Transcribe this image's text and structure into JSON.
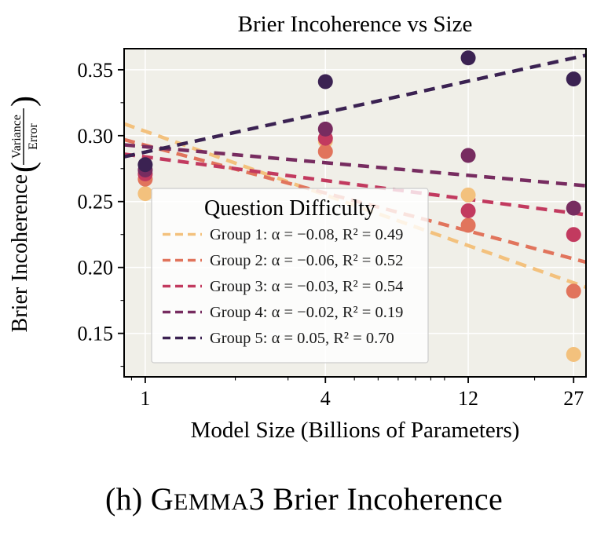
{
  "figure": {
    "caption": {
      "part1": "(h) G",
      "part2": "EMMA",
      "part3": "3 Brier Incoherence"
    }
  },
  "chart_data": {
    "type": "scatter",
    "title": "Brier Incoherence vs Size",
    "xlabel": "Model Size (Billions of Parameters)",
    "ylabel": "Brier Incoherence (Variance / Error)",
    "ylabel_parts": {
      "prefix": "Brier Incoherence",
      "open_paren": "(",
      "frac_top": "Variance",
      "frac_bottom": "Error",
      "close_paren": ")"
    },
    "x_scale": "log",
    "xlim": [
      0.85,
      29.7
    ],
    "ylim": [
      0.117,
      0.366
    ],
    "x_tick_values": [
      1,
      4,
      12,
      27
    ],
    "x_tick_labels": [
      "1",
      "4",
      "12",
      "27"
    ],
    "x_minor_ticks": [
      0.9,
      2,
      3,
      5,
      6,
      7,
      8,
      9,
      10,
      20
    ],
    "y_tick_values": [
      0.15,
      0.2,
      0.25,
      0.3,
      0.35
    ],
    "y_tick_labels": [
      "0.15",
      "0.20",
      "0.25",
      "0.30",
      "0.35"
    ],
    "y_minor_ticks": [
      0.125,
      0.175,
      0.225,
      0.275,
      0.325
    ],
    "grid": true,
    "background_color": "#f0efe8",
    "legend": {
      "title": "Question Difficulty"
    },
    "series": [
      {
        "name": "Group 1",
        "color": "#f3c17d",
        "alpha": -0.08,
        "r2": 0.49,
        "legend_label": "Group 1: α = −0.08, R² = 0.49",
        "points": [
          [
            1,
            0.256
          ],
          [
            4,
            0.296
          ],
          [
            12,
            0.255
          ],
          [
            27,
            0.134
          ]
        ],
        "trend": {
          "x1": 0.85,
          "y1": 0.309,
          "x2": 29.7,
          "y2": 0.185
        }
      },
      {
        "name": "Group 2",
        "color": "#e1745c",
        "alpha": -0.06,
        "r2": 0.52,
        "legend_label": "Group 2: α = −0.06, R² = 0.52",
        "points": [
          [
            1,
            0.267
          ],
          [
            4,
            0.288
          ],
          [
            12,
            0.232
          ],
          [
            27,
            0.182
          ]
        ],
        "trend": {
          "x1": 0.85,
          "y1": 0.297,
          "x2": 29.7,
          "y2": 0.204
        }
      },
      {
        "name": "Group 3",
        "color": "#c23a5f",
        "alpha": -0.03,
        "r2": 0.54,
        "legend_label": "Group 3: α = −0.03, R² = 0.54",
        "points": [
          [
            1,
            0.271
          ],
          [
            4,
            0.298
          ],
          [
            12,
            0.243
          ],
          [
            27,
            0.225
          ]
        ],
        "trend": {
          "x1": 0.85,
          "y1": 0.286,
          "x2": 29.7,
          "y2": 0.24
        }
      },
      {
        "name": "Group 4",
        "color": "#772c60",
        "alpha": -0.02,
        "r2": 0.19,
        "legend_label": "Group 4: α = −0.02, R² = 0.19",
        "points": [
          [
            1,
            0.274
          ],
          [
            4,
            0.305
          ],
          [
            12,
            0.285
          ],
          [
            27,
            0.245
          ]
        ],
        "trend": {
          "x1": 0.85,
          "y1": 0.293,
          "x2": 29.7,
          "y2": 0.262
        }
      },
      {
        "name": "Group 5",
        "color": "#3b2252",
        "alpha": 0.05,
        "r2": 0.7,
        "legend_label": "Group 5: α = 0.05, R² = 0.70",
        "points": [
          [
            1,
            0.278
          ],
          [
            4,
            0.341
          ],
          [
            12,
            0.359
          ],
          [
            27,
            0.343
          ]
        ],
        "trend": {
          "x1": 0.85,
          "y1": 0.284,
          "x2": 29.7,
          "y2": 0.361
        }
      }
    ]
  }
}
